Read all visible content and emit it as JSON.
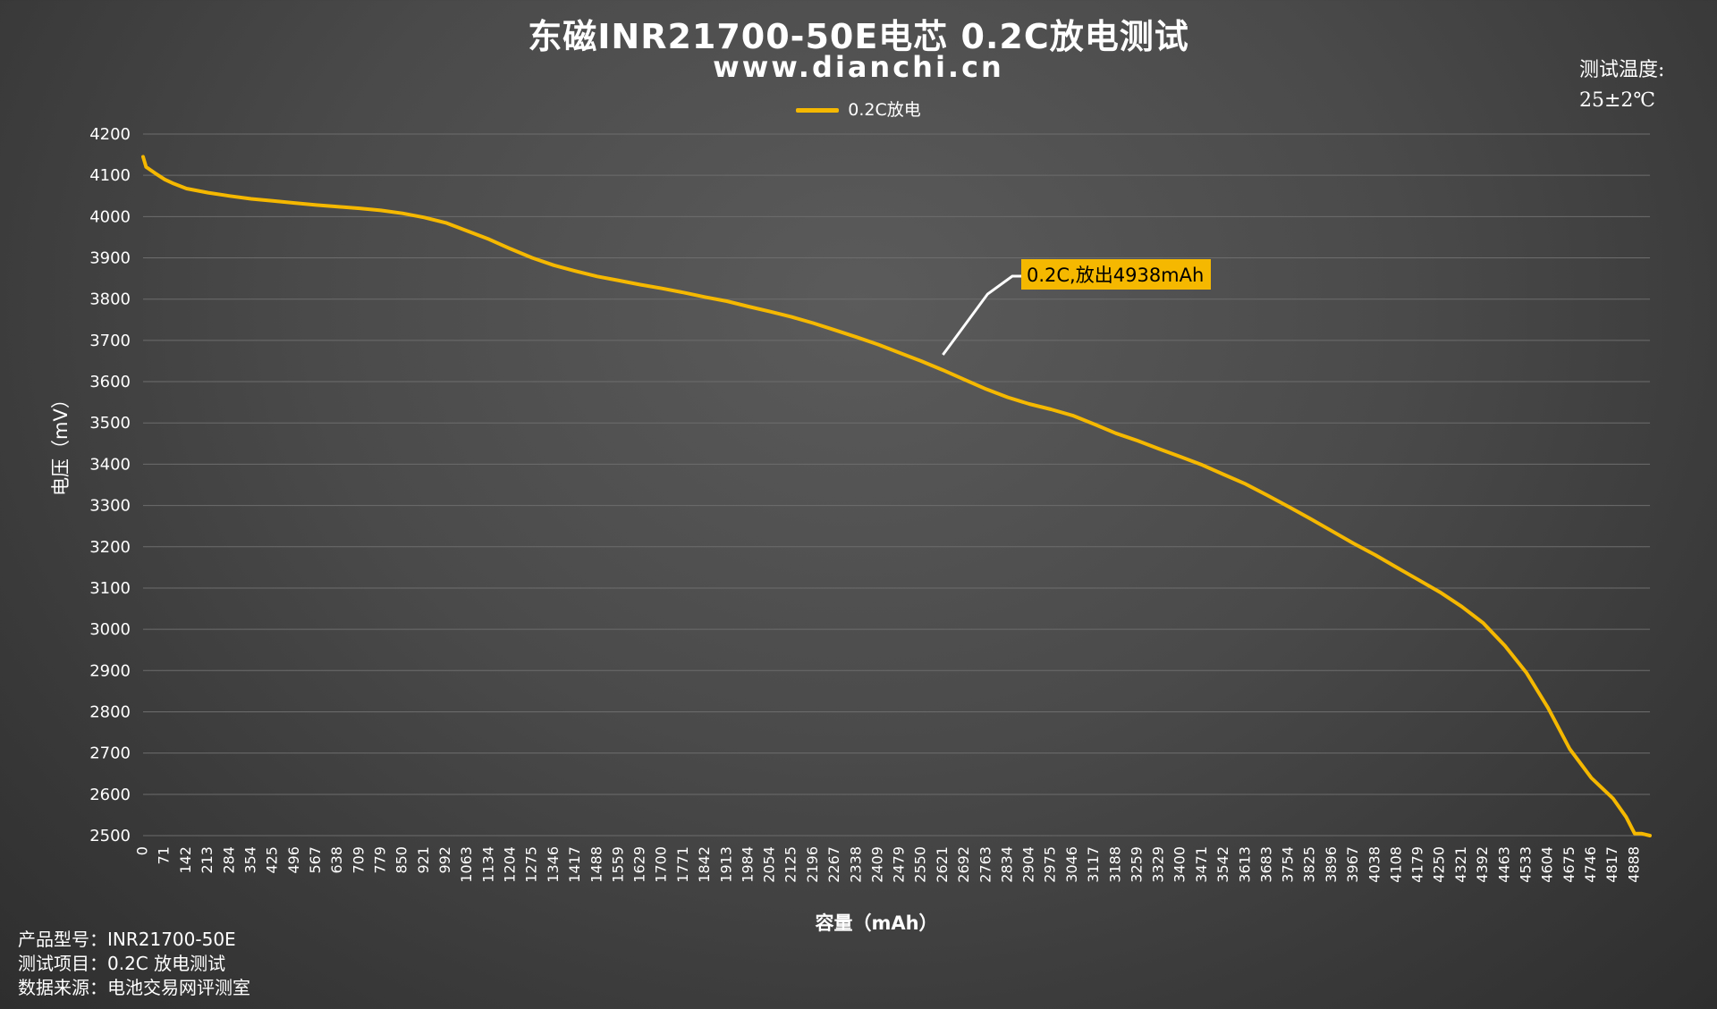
{
  "chart_data": {
    "type": "line",
    "title": "东磁INR21700-50E电芯 0.2C放电测试",
    "subtitle": "www.dianchi.cn",
    "xlabel": "容量（mAh）",
    "ylabel": "电压（mV）",
    "ylim": [
      2500,
      4200
    ],
    "xlim": [
      0,
      4938
    ],
    "yticks": [
      4200,
      4100,
      4000,
      3900,
      3800,
      3700,
      3600,
      3500,
      3400,
      3300,
      3200,
      3100,
      3000,
      2900,
      2800,
      2700,
      2600,
      2500
    ],
    "xticks": [
      0,
      71,
      142,
      213,
      284,
      354,
      425,
      496,
      567,
      638,
      709,
      779,
      850,
      921,
      992,
      1063,
      1134,
      1204,
      1275,
      1346,
      1417,
      1488,
      1559,
      1629,
      1700,
      1771,
      1842,
      1913,
      1984,
      2054,
      2125,
      2196,
      2267,
      2338,
      2409,
      2479,
      2550,
      2621,
      2692,
      2763,
      2834,
      2904,
      2975,
      3046,
      3117,
      3188,
      3259,
      3329,
      3400,
      3471,
      3542,
      3613,
      3683,
      3754,
      3825,
      3896,
      3967,
      4038,
      4108,
      4179,
      4250,
      4321,
      4392,
      4463,
      4533,
      4604,
      4675,
      4746,
      4817,
      4888
    ],
    "grid": true,
    "legend_position": "top-center",
    "series": [
      {
        "name": "0.2C放电",
        "color": "#f5b800",
        "x": [
          0,
          10,
          40,
          71,
          100,
          142,
          213,
          284,
          354,
          425,
          496,
          567,
          638,
          709,
          779,
          850,
          921,
          992,
          1063,
          1134,
          1204,
          1275,
          1346,
          1417,
          1488,
          1559,
          1629,
          1700,
          1771,
          1842,
          1913,
          1984,
          2054,
          2125,
          2196,
          2267,
          2338,
          2409,
          2479,
          2550,
          2621,
          2692,
          2763,
          2834,
          2904,
          2975,
          3046,
          3117,
          3188,
          3259,
          3329,
          3400,
          3471,
          3542,
          3613,
          3683,
          3754,
          3825,
          3896,
          3967,
          4038,
          4108,
          4179,
          4250,
          4321,
          4392,
          4463,
          4533,
          4604,
          4675,
          4746,
          4817,
          4860,
          4888,
          4910,
          4938
        ],
        "y": [
          4145,
          4120,
          4105,
          4090,
          4080,
          4068,
          4058,
          4050,
          4043,
          4038,
          4033,
          4028,
          4024,
          4020,
          4015,
          4008,
          3998,
          3985,
          3965,
          3945,
          3922,
          3900,
          3882,
          3868,
          3855,
          3845,
          3835,
          3826,
          3816,
          3805,
          3795,
          3782,
          3770,
          3757,
          3742,
          3725,
          3708,
          3690,
          3670,
          3650,
          3628,
          3605,
          3582,
          3562,
          3546,
          3533,
          3518,
          3497,
          3475,
          3457,
          3437,
          3418,
          3398,
          3375,
          3352,
          3325,
          3297,
          3268,
          3238,
          3208,
          3180,
          3150,
          3120,
          3090,
          3055,
          3015,
          2960,
          2895,
          2810,
          2710,
          2640,
          2590,
          2545,
          2505,
          2505,
          2500
        ]
      }
    ],
    "annotation": {
      "text": "0.2C,放出4938mAh",
      "x": 2621,
      "y": 3665,
      "box_color": "#f5b800"
    }
  },
  "legend": {
    "label": "0.2C放电"
  },
  "temperature": {
    "label": "测试温度:",
    "value": "25±2℃"
  },
  "info": {
    "line1": "产品型号：INR21700-50E",
    "line2": "测试项目：0.2C 放电测试",
    "line3": "数据来源：电池交易网评测室"
  }
}
